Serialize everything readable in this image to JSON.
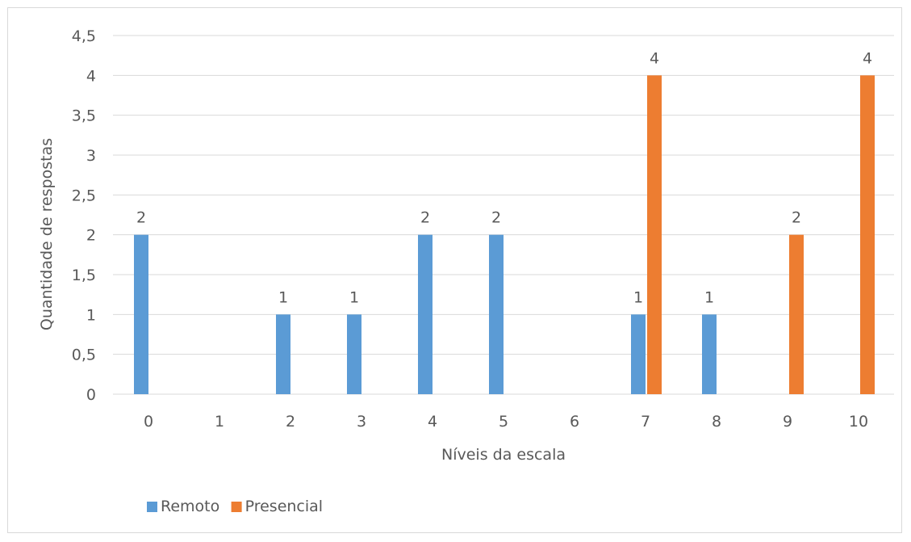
{
  "chart_data": {
    "type": "bar",
    "title": "",
    "xlabel": "Níveis da escala",
    "ylabel": "Quantidade de respostas",
    "categories": [
      "0",
      "1",
      "2",
      "3",
      "4",
      "5",
      "6",
      "7",
      "8",
      "9",
      "10"
    ],
    "ylim": [
      0,
      4.5
    ],
    "yticks": [
      "0",
      "0,5",
      "1",
      "1,5",
      "2",
      "2,5",
      "3",
      "3,5",
      "4",
      "4,5"
    ],
    "grid": true,
    "legend_position": "bottom-left",
    "series": [
      {
        "name": "Remoto",
        "color": "#5b9bd5",
        "values": [
          2,
          0,
          1,
          1,
          2,
          2,
          0,
          1,
          1,
          0,
          0
        ]
      },
      {
        "name": "Presencial",
        "color": "#ed7d31",
        "values": [
          0,
          0,
          0,
          0,
          0,
          0,
          0,
          4,
          0,
          2,
          4
        ]
      }
    ],
    "data_labels": true
  }
}
